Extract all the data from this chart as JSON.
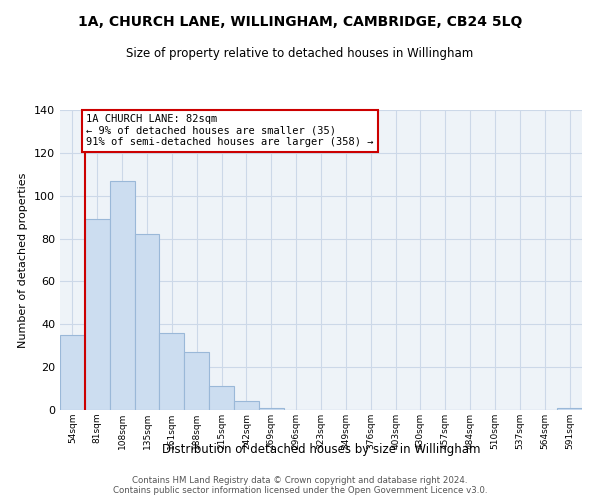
{
  "title": "1A, CHURCH LANE, WILLINGHAM, CAMBRIDGE, CB24 5LQ",
  "subtitle": "Size of property relative to detached houses in Willingham",
  "xlabel": "Distribution of detached houses by size in Willingham",
  "ylabel": "Number of detached properties",
  "bar_labels": [
    "54sqm",
    "81sqm",
    "108sqm",
    "135sqm",
    "161sqm",
    "188sqm",
    "215sqm",
    "242sqm",
    "269sqm",
    "296sqm",
    "323sqm",
    "349sqm",
    "376sqm",
    "403sqm",
    "430sqm",
    "457sqm",
    "484sqm",
    "510sqm",
    "537sqm",
    "564sqm",
    "591sqm"
  ],
  "bar_values": [
    35,
    89,
    107,
    82,
    36,
    27,
    11,
    4,
    1,
    0,
    0,
    0,
    0,
    0,
    0,
    0,
    0,
    0,
    0,
    0,
    1
  ],
  "bar_color": "#ccddf0",
  "bar_edge_color": "#9ab8d8",
  "vline_x": 0.5,
  "vline_color": "#cc0000",
  "annotation_line0": "1A CHURCH LANE: 82sqm",
  "annotation_line1": "← 9% of detached houses are smaller (35)",
  "annotation_line2": "91% of semi-detached houses are larger (358) →",
  "annotation_box_color": "#ffffff",
  "annotation_box_edge": "#cc0000",
  "ylim": [
    0,
    140
  ],
  "yticks": [
    0,
    20,
    40,
    60,
    80,
    100,
    120,
    140
  ],
  "footer_line1": "Contains HM Land Registry data © Crown copyright and database right 2024.",
  "footer_line2": "Contains public sector information licensed under the Open Government Licence v3.0.",
  "background_color": "#ffffff",
  "grid_color": "#ccd8e8",
  "plot_bg_color": "#eef3f8"
}
